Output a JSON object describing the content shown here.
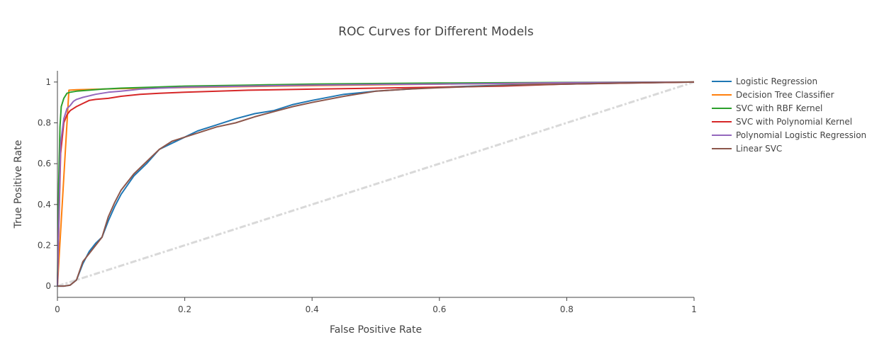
{
  "chart_data": {
    "type": "line",
    "title": "ROC Curves for Different Models",
    "xlabel": "False Positive Rate",
    "ylabel": "True Positive Rate",
    "xlim": [
      0,
      1
    ],
    "ylim": [
      -0.055,
      1.055
    ],
    "x_ticks": [
      0,
      0.2,
      0.4,
      0.6,
      0.8,
      1
    ],
    "x_tick_labels": [
      "0",
      "0.2",
      "0.4",
      "0.6",
      "0.8",
      "1"
    ],
    "y_ticks": [
      0,
      0.2,
      0.4,
      0.6,
      0.8,
      1
    ],
    "y_tick_labels": [
      "0",
      "0.2",
      "0.4",
      "0.6",
      "0.8",
      "1"
    ],
    "grid": false,
    "legend_position": "right",
    "series": [
      {
        "name": "Logistic Regression",
        "color": "#1f77b4",
        "x": [
          0,
          0.01,
          0.02,
          0.03,
          0.04,
          0.05,
          0.06,
          0.07,
          0.08,
          0.09,
          0.1,
          0.12,
          0.14,
          0.16,
          0.18,
          0.2,
          0.22,
          0.25,
          0.28,
          0.31,
          0.34,
          0.37,
          0.4,
          0.45,
          0.5,
          0.55,
          0.6,
          0.7,
          0.8,
          0.9,
          1.0
        ],
        "y": [
          0,
          0,
          0.005,
          0.03,
          0.11,
          0.17,
          0.21,
          0.24,
          0.32,
          0.39,
          0.45,
          0.54,
          0.6,
          0.67,
          0.7,
          0.73,
          0.76,
          0.79,
          0.82,
          0.845,
          0.86,
          0.89,
          0.91,
          0.94,
          0.955,
          0.965,
          0.975,
          0.985,
          0.99,
          0.995,
          1.0
        ]
      },
      {
        "name": "Decision Tree Classifier",
        "color": "#ff7f0e",
        "x": [
          0,
          0.018,
          0.03,
          0.1,
          0.3,
          0.6,
          1.0
        ],
        "y": [
          0,
          0.96,
          0.962,
          0.968,
          0.978,
          0.99,
          1.0
        ]
      },
      {
        "name": "SVC with RBF Kernel",
        "color": "#2ca02c",
        "x": [
          0,
          0.002,
          0.004,
          0.006,
          0.01,
          0.015,
          0.02,
          0.03,
          0.05,
          0.07,
          0.1,
          0.15,
          0.2,
          0.3,
          0.4,
          0.6,
          0.8,
          1.0
        ],
        "y": [
          0,
          0.5,
          0.78,
          0.88,
          0.92,
          0.945,
          0.95,
          0.955,
          0.96,
          0.965,
          0.97,
          0.975,
          0.98,
          0.985,
          0.99,
          0.995,
          0.998,
          1.0
        ]
      },
      {
        "name": "SVC with Polynomial Kernel",
        "color": "#d62728",
        "x": [
          0,
          0.005,
          0.01,
          0.015,
          0.02,
          0.025,
          0.03,
          0.04,
          0.05,
          0.06,
          0.08,
          0.1,
          0.13,
          0.16,
          0.2,
          0.3,
          0.4,
          0.5,
          0.6,
          0.7,
          0.8,
          0.9,
          1.0
        ],
        "y": [
          0,
          0.65,
          0.8,
          0.84,
          0.86,
          0.87,
          0.88,
          0.895,
          0.91,
          0.915,
          0.92,
          0.93,
          0.94,
          0.945,
          0.95,
          0.96,
          0.965,
          0.97,
          0.975,
          0.98,
          0.99,
          0.995,
          1.0
        ]
      },
      {
        "name": "Polynomial Logistic Regression",
        "color": "#9467bd",
        "x": [
          0,
          0.005,
          0.01,
          0.015,
          0.02,
          0.025,
          0.03,
          0.04,
          0.06,
          0.08,
          0.1,
          0.13,
          0.16,
          0.2,
          0.3,
          0.4,
          0.5,
          0.6,
          0.7,
          0.8,
          1.0
        ],
        "y": [
          0,
          0.7,
          0.82,
          0.87,
          0.885,
          0.905,
          0.915,
          0.925,
          0.94,
          0.95,
          0.955,
          0.965,
          0.97,
          0.975,
          0.98,
          0.985,
          0.988,
          0.99,
          0.993,
          0.997,
          1.0
        ]
      },
      {
        "name": "Linear SVC",
        "color": "#8c564b",
        "x": [
          0,
          0.01,
          0.02,
          0.03,
          0.04,
          0.05,
          0.06,
          0.07,
          0.08,
          0.09,
          0.1,
          0.12,
          0.14,
          0.16,
          0.18,
          0.2,
          0.22,
          0.25,
          0.28,
          0.31,
          0.34,
          0.37,
          0.4,
          0.45,
          0.5,
          0.55,
          0.6,
          0.7,
          0.8,
          0.9,
          1.0
        ],
        "y": [
          0,
          0,
          0.005,
          0.03,
          0.12,
          0.16,
          0.2,
          0.24,
          0.34,
          0.41,
          0.47,
          0.55,
          0.61,
          0.67,
          0.71,
          0.73,
          0.75,
          0.78,
          0.8,
          0.83,
          0.855,
          0.88,
          0.9,
          0.93,
          0.955,
          0.965,
          0.972,
          0.983,
          0.99,
          0.996,
          1.0
        ]
      },
      {
        "name": "chance-diagonal",
        "color": "#d9d9d9",
        "dashed": true,
        "in_legend": false,
        "x": [
          0,
          1
        ],
        "y": [
          0,
          1
        ]
      }
    ]
  }
}
